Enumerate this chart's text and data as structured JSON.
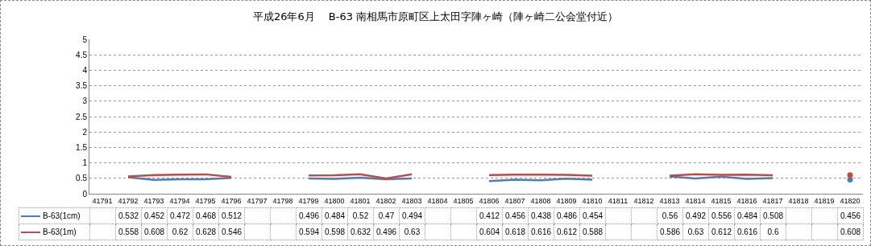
{
  "chart_data": {
    "type": "line",
    "title": "平成26年6月　 B-63 南相馬市原町区上太田字陣ヶ崎（陣ヶ崎二公会堂付近）",
    "categories": [
      "41791",
      "41792",
      "41793",
      "41794",
      "41795",
      "41796",
      "41797",
      "41798",
      "41799",
      "41800",
      "41801",
      "41802",
      "41803",
      "41804",
      "41805",
      "41806",
      "41807",
      "41808",
      "41809",
      "41810",
      "41811",
      "41812",
      "41813",
      "41814",
      "41815",
      "41816",
      "41817",
      "41818",
      "41819",
      "41820"
    ],
    "series": [
      {
        "name": "B-63(1cm)",
        "color": "#4a7ebb",
        "values": [
          null,
          0.532,
          0.452,
          0.472,
          0.468,
          0.512,
          null,
          null,
          0.496,
          0.484,
          0.52,
          0.47,
          0.494,
          null,
          null,
          0.412,
          0.456,
          0.438,
          0.486,
          0.454,
          null,
          null,
          0.56,
          0.492,
          0.556,
          0.484,
          0.508,
          null,
          null,
          0.456
        ]
      },
      {
        "name": "B-63(1m)",
        "color": "#be4b48",
        "values": [
          null,
          0.558,
          0.608,
          0.62,
          0.628,
          0.546,
          null,
          null,
          0.594,
          0.598,
          0.632,
          0.496,
          0.63,
          null,
          null,
          0.604,
          0.618,
          0.616,
          0.612,
          0.588,
          null,
          null,
          0.586,
          0.63,
          0.612,
          0.616,
          0.6,
          null,
          null,
          0.608
        ]
      }
    ],
    "ylim": [
      0,
      5
    ],
    "yticks": [
      0,
      0.5,
      1,
      1.5,
      2,
      2.5,
      3,
      3.5,
      4,
      4.5,
      5
    ],
    "grid": "y",
    "legend": "bottom left",
    "marker": "none",
    "line_style": "solid",
    "data_labels": true
  }
}
